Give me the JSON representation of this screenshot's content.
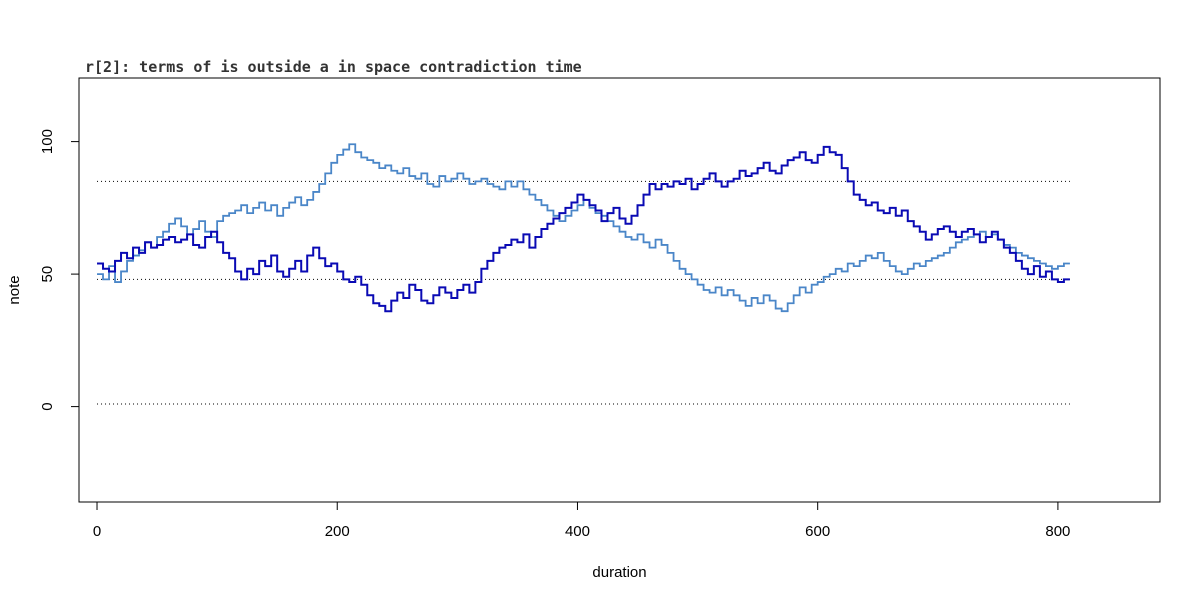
{
  "chart_data": {
    "type": "line",
    "title": "r[2]: terms of is outside a in space contradiction time",
    "xlabel": "duration",
    "ylabel": "note",
    "xlim": [
      -15,
      885
    ],
    "ylim": [
      -36,
      124
    ],
    "x_ticks": [
      0,
      200,
      400,
      600,
      800
    ],
    "x_tick_labels": [
      "0",
      "200",
      "400",
      "600",
      "800"
    ],
    "y_ticks": [
      0,
      50,
      100
    ],
    "y_tick_labels": [
      "0",
      "50",
      "100"
    ],
    "reference_lines": [
      85,
      48,
      1
    ],
    "reference_x_range": [
      0,
      810
    ],
    "grid": false,
    "legend": "none",
    "colors": {
      "series_dark": "#0a0ab4",
      "series_light": "#4a86c8",
      "reference": "#000000"
    },
    "series": [
      {
        "x": [
          0,
          5,
          10,
          15,
          20,
          25,
          30,
          35,
          40,
          45,
          50,
          55,
          60,
          65,
          70,
          75,
          80,
          85,
          90,
          95,
          100,
          105,
          110,
          115,
          120,
          125,
          130,
          135,
          140,
          145,
          150,
          155,
          160,
          165,
          170,
          175,
          180,
          185,
          190,
          195,
          200,
          205,
          210,
          215,
          220,
          225,
          230,
          235,
          240,
          245,
          250,
          255,
          260,
          265,
          270,
          275,
          280,
          285,
          290,
          295,
          300,
          305,
          310,
          315,
          320,
          325,
          330,
          335,
          340,
          345,
          350,
          355,
          360,
          365,
          370,
          375,
          380,
          385,
          390,
          395,
          400,
          405,
          410,
          415,
          420,
          425,
          430,
          435,
          440,
          445,
          450,
          455,
          460,
          465,
          470,
          475,
          480,
          485,
          490,
          495,
          500,
          505,
          510,
          515,
          520,
          525,
          530,
          535,
          540,
          545,
          550,
          555,
          560,
          565,
          570,
          575,
          580,
          585,
          590,
          595,
          600,
          605,
          610,
          615,
          620,
          625,
          630,
          635,
          640,
          645,
          650,
          655,
          660,
          665,
          670,
          675,
          680,
          685,
          690,
          695,
          700,
          705,
          710,
          715,
          720,
          725,
          730,
          735,
          740,
          745,
          750,
          755,
          760,
          765,
          770,
          775,
          780,
          785,
          790,
          795,
          800,
          805,
          810
        ],
        "y": [
          54,
          52,
          51,
          55,
          58,
          56,
          60,
          58,
          62,
          60,
          61,
          63,
          64,
          62,
          63,
          65,
          61,
          60,
          64,
          66,
          62,
          58,
          56,
          51,
          48,
          52,
          50,
          55,
          53,
          57,
          51,
          49,
          52,
          55,
          51,
          57,
          60,
          56,
          53,
          54,
          51,
          48,
          47,
          49,
          46,
          42,
          39,
          38,
          36,
          40,
          43,
          41,
          46,
          44,
          40,
          39,
          42,
          45,
          43,
          41,
          44,
          46,
          43,
          47,
          52,
          55,
          58,
          60,
          61,
          63,
          62,
          65,
          60,
          64,
          67,
          69,
          71,
          73,
          75,
          77,
          80,
          78,
          76,
          74,
          70,
          73,
          75,
          71,
          69,
          72,
          76,
          80,
          84,
          82,
          84,
          83,
          85,
          84,
          86,
          82,
          84,
          86,
          88,
          85,
          83,
          85,
          86,
          89,
          87,
          88,
          90,
          92,
          89,
          88,
          91,
          93,
          94,
          96,
          93,
          92,
          95,
          98,
          96,
          95,
          90,
          85,
          80,
          78,
          76,
          77,
          74,
          73,
          75,
          72,
          74,
          70,
          68,
          66,
          63,
          65,
          67,
          68,
          66,
          64,
          66,
          67,
          65,
          62,
          64,
          66,
          63,
          60,
          58,
          55,
          52,
          50,
          53,
          49,
          51,
          48,
          47,
          48,
          48
        ]
      },
      {
        "x": [
          0,
          5,
          10,
          15,
          20,
          25,
          30,
          35,
          40,
          45,
          50,
          55,
          60,
          65,
          70,
          75,
          80,
          85,
          90,
          95,
          100,
          105,
          110,
          115,
          120,
          125,
          130,
          135,
          140,
          145,
          150,
          155,
          160,
          165,
          170,
          175,
          180,
          185,
          190,
          195,
          200,
          205,
          210,
          215,
          220,
          225,
          230,
          235,
          240,
          245,
          250,
          255,
          260,
          265,
          270,
          275,
          280,
          285,
          290,
          295,
          300,
          305,
          310,
          315,
          320,
          325,
          330,
          335,
          340,
          345,
          350,
          355,
          360,
          365,
          370,
          375,
          380,
          385,
          390,
          395,
          400,
          405,
          410,
          415,
          420,
          425,
          430,
          435,
          440,
          445,
          450,
          455,
          460,
          465,
          470,
          475,
          480,
          485,
          490,
          495,
          500,
          505,
          510,
          515,
          520,
          525,
          530,
          535,
          540,
          545,
          550,
          555,
          560,
          565,
          570,
          575,
          580,
          585,
          590,
          595,
          600,
          605,
          610,
          615,
          620,
          625,
          630,
          635,
          640,
          645,
          650,
          655,
          660,
          665,
          670,
          675,
          680,
          685,
          690,
          695,
          700,
          705,
          710,
          715,
          720,
          725,
          730,
          735,
          740,
          745,
          750,
          755,
          760,
          765,
          770,
          775,
          780,
          785,
          790,
          795,
          800,
          805,
          810
        ],
        "y": [
          50,
          48,
          53,
          47,
          51,
          55,
          57,
          59,
          62,
          60,
          64,
          66,
          69,
          71,
          68,
          65,
          67,
          70,
          66,
          64,
          70,
          72,
          73,
          74,
          76,
          73,
          75,
          77,
          74,
          76,
          72,
          75,
          77,
          79,
          76,
          78,
          81,
          84,
          88,
          92,
          95,
          97,
          99,
          96,
          94,
          93,
          92,
          90,
          91,
          89,
          88,
          90,
          87,
          86,
          88,
          84,
          83,
          87,
          85,
          86,
          88,
          86,
          84,
          85,
          86,
          84,
          83,
          82,
          85,
          83,
          85,
          82,
          80,
          78,
          76,
          74,
          72,
          70,
          72,
          74,
          76,
          78,
          75,
          73,
          72,
          70,
          68,
          66,
          64,
          63,
          65,
          62,
          60,
          63,
          61,
          58,
          55,
          52,
          50,
          48,
          46,
          44,
          43,
          45,
          42,
          44,
          42,
          40,
          38,
          41,
          39,
          42,
          40,
          37,
          36,
          39,
          42,
          45,
          43,
          46,
          47,
          49,
          50,
          52,
          51,
          54,
          53,
          55,
          57,
          56,
          58,
          55,
          53,
          51,
          50,
          52,
          54,
          53,
          55,
          56,
          57,
          58,
          60,
          62,
          63,
          64,
          65,
          66,
          64,
          65,
          63,
          61,
          60,
          58,
          57,
          56,
          55,
          54,
          53,
          52,
          53,
          54,
          54
        ]
      }
    ]
  }
}
